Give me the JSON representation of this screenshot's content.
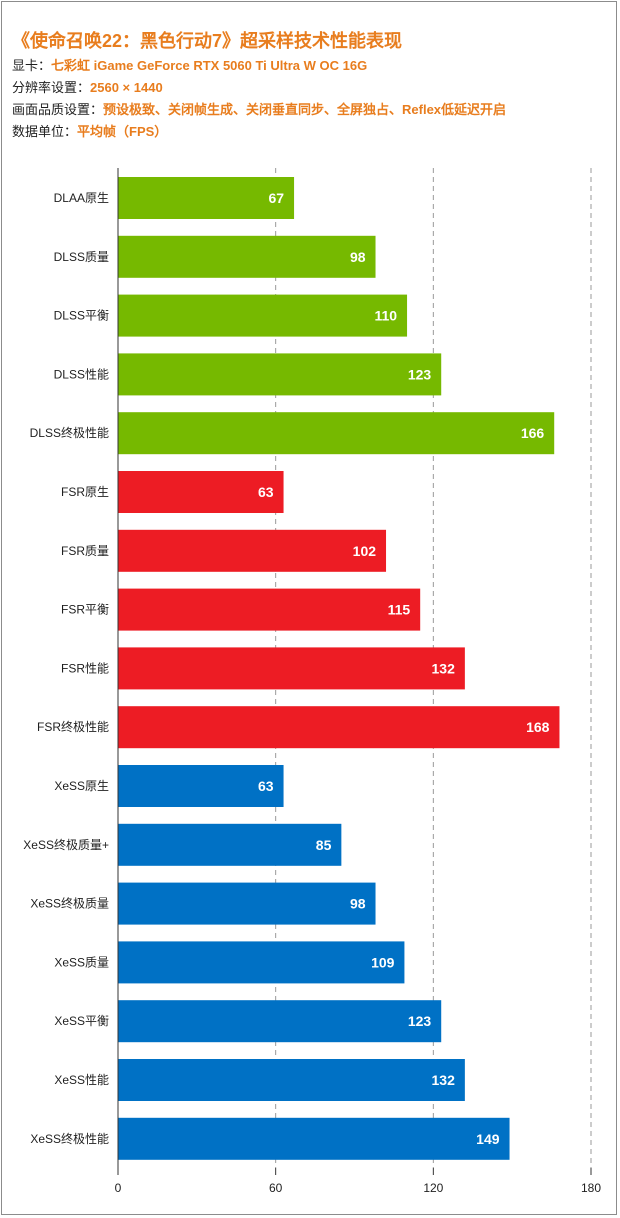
{
  "header": {
    "title": "《使命召唤22：黑色行动7》超采样技术性能表现",
    "rows": [
      {
        "label": "显卡：",
        "value": "七彩虹 iGame GeForce RTX 5060 Ti Ultra W OC 16G"
      },
      {
        "label": "分辨率设置：",
        "value": "2560 × 1440"
      },
      {
        "label": "画面品质设置：",
        "value": "预设极致、关闭帧生成、关闭垂直同步、全屏独占、Reflex低延迟开启"
      },
      {
        "label": "数据单位：",
        "value": "平均帧（FPS）"
      }
    ]
  },
  "colors": {
    "dlss": "#76b900",
    "fsr": "#ed1c24",
    "xess": "#0071c5",
    "accent": "#e87d1e"
  },
  "chart_data": {
    "type": "bar",
    "orientation": "horizontal",
    "categories": [
      "DLAA原生",
      "DLSS质量",
      "DLSS平衡",
      "DLSS性能",
      "DLSS终极性能",
      "FSR原生",
      "FSR质量",
      "FSR平衡",
      "FSR性能",
      "FSR终极性能",
      "XeSS原生",
      "XeSS终极质量+",
      "XeSS终极质量",
      "XeSS质量",
      "XeSS平衡",
      "XeSS性能",
      "XeSS终极性能"
    ],
    "values": [
      67,
      98,
      110,
      123,
      166,
      63,
      102,
      115,
      132,
      168,
      63,
      85,
      98,
      109,
      123,
      132,
      149
    ],
    "groups": [
      "dlss",
      "dlss",
      "dlss",
      "dlss",
      "dlss",
      "fsr",
      "fsr",
      "fsr",
      "fsr",
      "fsr",
      "xess",
      "xess",
      "xess",
      "xess",
      "xess",
      "xess",
      "xess"
    ],
    "xlim": [
      0,
      180
    ],
    "xticks": [
      0,
      60,
      120,
      180
    ],
    "grid": "vertical dashed",
    "legend": "none"
  }
}
